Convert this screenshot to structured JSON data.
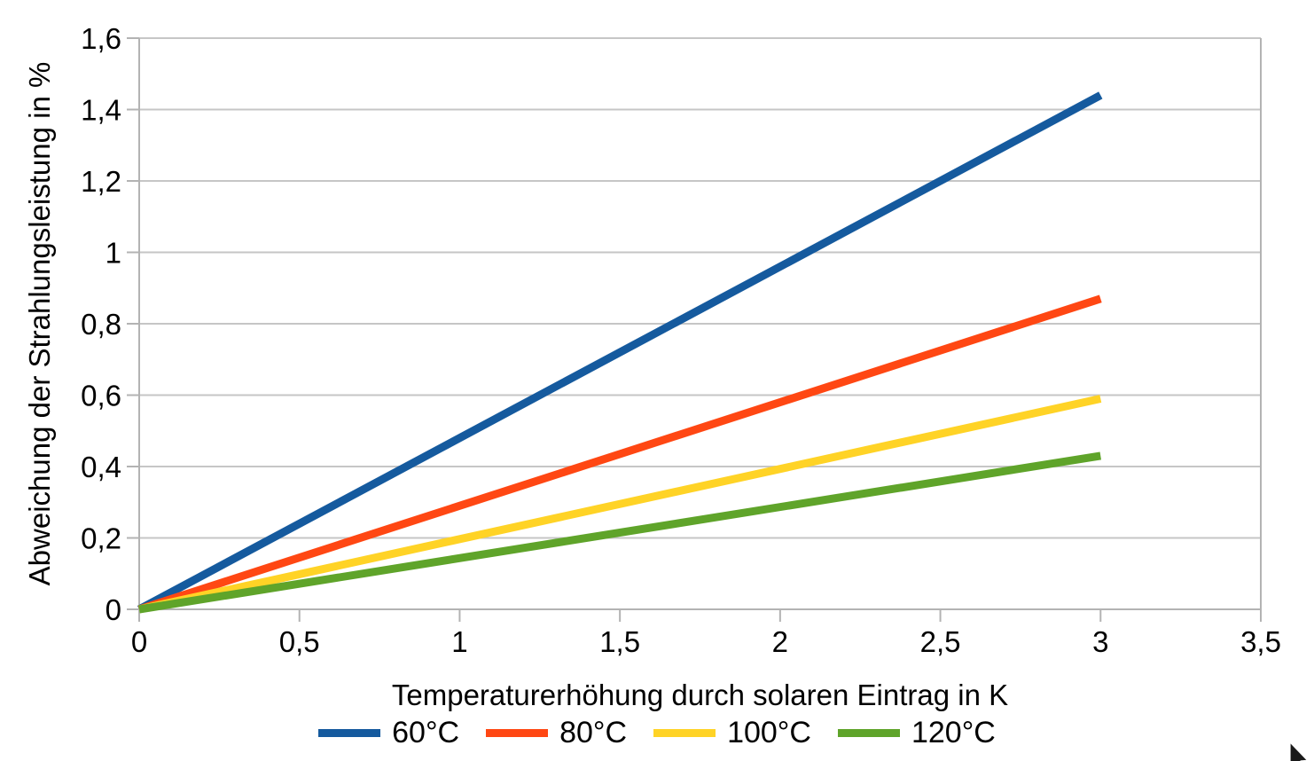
{
  "chart_data": {
    "type": "line",
    "title": "",
    "xlabel": "Temperaturerhöhung durch solaren Eintrag in K",
    "ylabel": "Abweichung der Strahlungsleistung in %",
    "xlim": [
      0,
      3.5
    ],
    "ylim": [
      0,
      1.6
    ],
    "x_ticks": [
      0,
      0.5,
      1,
      1.5,
      2,
      2.5,
      3,
      3.5
    ],
    "x_tick_labels": [
      "0",
      "0,5",
      "1",
      "1,5",
      "2",
      "2,5",
      "3",
      "3,5"
    ],
    "y_ticks": [
      0,
      0.2,
      0.4,
      0.6,
      0.8,
      1,
      1.2,
      1.4,
      1.6
    ],
    "y_tick_labels": [
      "0",
      "0,2",
      "0,4",
      "0,6",
      "0,8",
      "1",
      "1,2",
      "1,4",
      "1,6"
    ],
    "grid": "horizontal-only",
    "legend_position": "bottom",
    "series": [
      {
        "name": "60°C",
        "color": "#155A9E",
        "x": [
          0,
          3
        ],
        "y": [
          0,
          1.44
        ]
      },
      {
        "name": "80°C",
        "color": "#FF4713",
        "x": [
          0,
          3
        ],
        "y": [
          0,
          0.87
        ]
      },
      {
        "name": "100°C",
        "color": "#FFD326",
        "x": [
          0,
          3
        ],
        "y": [
          0,
          0.59
        ]
      },
      {
        "name": "120°C",
        "color": "#5FA42A",
        "x": [
          0,
          3
        ],
        "y": [
          0,
          0.43
        ]
      }
    ],
    "colors": {
      "gridline": "#C6C6C6",
      "axis": "#B3B3B3",
      "tick": "#B3B3B3",
      "text": "#000000",
      "background": "#FFFFFF"
    },
    "line_width": 9
  },
  "icons": {
    "mouse_cursor": "arrow-pointer"
  }
}
